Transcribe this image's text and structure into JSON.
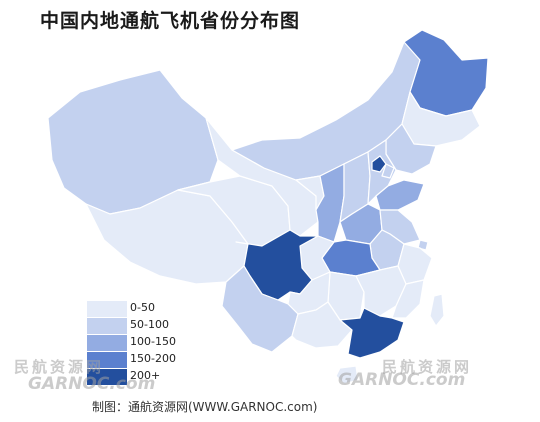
{
  "title": "中国内地通航飞机省份分布图",
  "source_note": "制图：通航资源网(WWW.GARNOC.com)",
  "watermarks": {
    "left_cn": "民航资源网",
    "left_en": "GARNOC.com",
    "right_cn": "民航资源网",
    "right_en": "GARNOC.com"
  },
  "legend": [
    {
      "label": "0-50",
      "color": "#e4ebf8"
    },
    {
      "label": "50-100",
      "color": "#c3d1ef"
    },
    {
      "label": "100-150",
      "color": "#93ace2"
    },
    {
      "label": "150-200",
      "color": "#5b80cf"
    },
    {
      "label": "200+",
      "color": "#234f9e"
    }
  ],
  "colors": {
    "border": "#ffffff",
    "outline": "#d7deee"
  }
}
